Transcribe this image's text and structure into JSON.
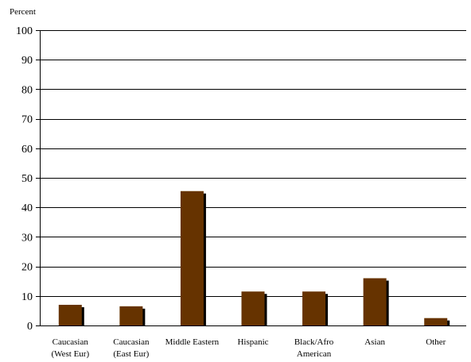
{
  "chart_data": {
    "type": "bar",
    "ylabel": "Percent",
    "ylim": [
      0,
      100
    ],
    "yticks": [
      0,
      10,
      20,
      30,
      40,
      50,
      60,
      70,
      80,
      90,
      100
    ],
    "grid": true,
    "categories": [
      [
        "Caucasian",
        "(West Eur)"
      ],
      [
        "Caucasian",
        "(East Eur)"
      ],
      [
        "Middle Eastern"
      ],
      [
        "Hispanic"
      ],
      [
        "Black/Afro",
        "American"
      ],
      [
        "Asian"
      ],
      [
        "Other"
      ]
    ],
    "values": [
      7,
      6.5,
      45.5,
      11.5,
      11.5,
      16,
      2.5
    ],
    "colors": {
      "bar": "#663300",
      "shadow": "#000000",
      "grid": "#000000",
      "axis": "#000000"
    }
  }
}
